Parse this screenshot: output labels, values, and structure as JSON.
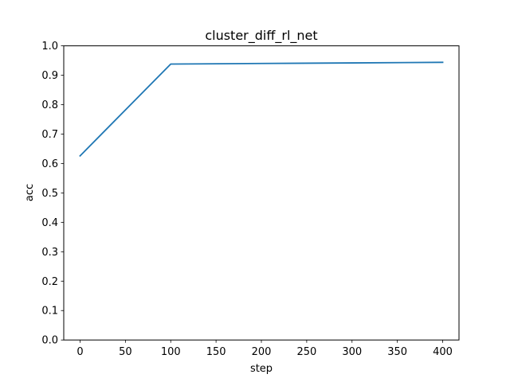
{
  "chart_data": {
    "type": "line",
    "title": "cluster_diff_rl_net",
    "xlabel": "step",
    "ylabel": "acc",
    "xlim": [
      -18,
      418
    ],
    "ylim": [
      0.0,
      1.0
    ],
    "xticks": [
      0,
      50,
      100,
      150,
      200,
      250,
      300,
      350,
      400
    ],
    "xtick_labels": [
      "0",
      "50",
      "100",
      "150",
      "200",
      "250",
      "300",
      "350",
      "400"
    ],
    "yticks": [
      0.0,
      0.1,
      0.2,
      0.3,
      0.4,
      0.5,
      0.6,
      0.7,
      0.8,
      0.9,
      1.0
    ],
    "ytick_labels": [
      "0.0",
      "0.1",
      "0.2",
      "0.3",
      "0.4",
      "0.5",
      "0.6",
      "0.7",
      "0.8",
      "0.9",
      "1.0"
    ],
    "grid": false,
    "series": [
      {
        "x": [
          0,
          100,
          200,
          300,
          400
        ],
        "values": [
          0.626,
          0.938,
          0.94,
          0.942,
          0.944
        ],
        "color": "#1f77b4"
      }
    ]
  }
}
